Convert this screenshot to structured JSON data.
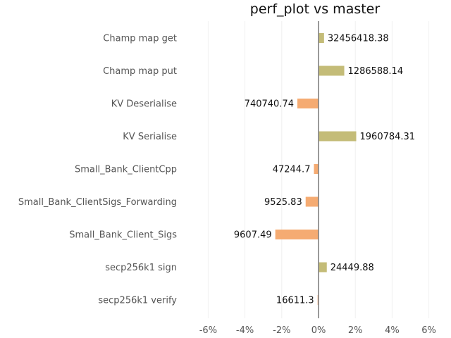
{
  "chart_data": {
    "type": "bar",
    "orientation": "horizontal",
    "title": "perf_plot vs master",
    "xlabel": "",
    "ylabel": "",
    "xlim": [
      -7,
      6.5
    ],
    "xticks": [
      -6,
      -4,
      -2,
      0,
      2,
      4,
      6
    ],
    "xtick_labels": [
      "-6%",
      "-4%",
      "-2%",
      "0%",
      "2%",
      "4%",
      "6%"
    ],
    "grid": true,
    "colors": {
      "positive": "#c4bc78",
      "negative": "#f5ab72",
      "zero_line": "#808080"
    },
    "categories": [
      "Champ map get",
      "Champ map put",
      "KV Deserialise",
      "KV Serialise",
      "Small_Bank_ClientCpp",
      "Small_Bank_ClientSigs_Forwarding",
      "Small_Bank_Client_Sigs",
      "secp256k1 sign",
      "secp256k1 verify"
    ],
    "values": [
      0.3,
      1.4,
      -1.15,
      2.05,
      -0.25,
      -0.7,
      -2.35,
      0.45,
      -0.05
    ],
    "value_labels": [
      "32456418.38",
      "1286588.14",
      "740740.74",
      "1960784.31",
      "47244.7",
      "9525.83",
      "9607.49",
      "24449.88",
      "16611.3"
    ]
  }
}
